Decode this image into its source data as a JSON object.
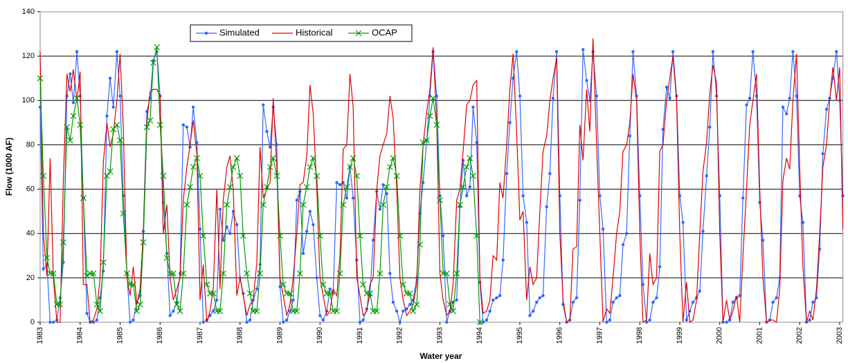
{
  "chart_data": {
    "type": "line",
    "x_label": "Water year",
    "y_label": "Flow (1000 AF)",
    "xlim": [
      1983,
      2003.08
    ],
    "ylim": [
      0,
      140
    ],
    "xticks": [
      1983,
      1984,
      1985,
      1986,
      1987,
      1988,
      1989,
      1990,
      1991,
      1992,
      1993,
      1994,
      1995,
      1996,
      1997,
      1998,
      1999,
      2000,
      2001,
      2002,
      2003
    ],
    "yticks": [
      0,
      20,
      40,
      60,
      80,
      100,
      120,
      140
    ],
    "grid": true,
    "legend_position": "top",
    "x": [
      1983,
      1983.08,
      1983.17,
      1983.25,
      1983.33,
      1983.42,
      1983.5,
      1983.58,
      1983.67,
      1983.75,
      1983.83,
      1983.92,
      1984,
      1984.08,
      1984.17,
      1984.25,
      1984.33,
      1984.42,
      1984.5,
      1984.58,
      1984.67,
      1984.75,
      1984.83,
      1984.92,
      1985,
      1985.08,
      1985.17,
      1985.25,
      1985.33,
      1985.42,
      1985.5,
      1985.58,
      1985.67,
      1985.75,
      1985.83,
      1985.92,
      1986,
      1986.08,
      1986.17,
      1986.25,
      1986.33,
      1986.42,
      1986.5,
      1986.58,
      1986.67,
      1986.75,
      1986.83,
      1986.92,
      1987,
      1987.08,
      1987.17,
      1987.25,
      1987.33,
      1987.42,
      1987.5,
      1987.58,
      1987.67,
      1987.75,
      1987.83,
      1987.92,
      1988,
      1988.08,
      1988.17,
      1988.25,
      1988.33,
      1988.42,
      1988.5,
      1988.58,
      1988.67,
      1988.75,
      1988.83,
      1988.92,
      1989,
      1989.08,
      1989.17,
      1989.25,
      1989.33,
      1989.42,
      1989.5,
      1989.58,
      1989.67,
      1989.75,
      1989.83,
      1989.92,
      1990,
      1990.08,
      1990.17,
      1990.25,
      1990.33,
      1990.42,
      1990.5,
      1990.58,
      1990.67,
      1990.75,
      1990.83,
      1990.92,
      1991,
      1991.08,
      1991.17,
      1991.25,
      1991.33,
      1991.42,
      1991.5,
      1991.58,
      1991.67,
      1991.75,
      1991.83,
      1991.92,
      1992,
      1992.08,
      1992.17,
      1992.25,
      1992.33,
      1992.42,
      1992.5,
      1992.58,
      1992.67,
      1992.75,
      1992.83,
      1992.92,
      1993,
      1993.08,
      1993.17,
      1993.25,
      1993.33,
      1993.42,
      1993.5,
      1993.58,
      1993.67,
      1993.75,
      1993.83,
      1993.92,
      1994,
      1994.08,
      1994.17,
      1994.25,
      1994.33,
      1994.42,
      1994.5,
      1994.58,
      1994.67,
      1994.75,
      1994.83,
      1994.92,
      1995,
      1995.08,
      1995.17,
      1995.25,
      1995.33,
      1995.42,
      1995.5,
      1995.58,
      1995.67,
      1995.75,
      1995.83,
      1995.92,
      1996,
      1996.08,
      1996.17,
      1996.25,
      1996.33,
      1996.42,
      1996.5,
      1996.58,
      1996.67,
      1996.75,
      1996.83,
      1996.92,
      1997,
      1997.08,
      1997.17,
      1997.25,
      1997.33,
      1997.42,
      1997.5,
      1997.58,
      1997.67,
      1997.75,
      1997.83,
      1997.92,
      1998,
      1998.08,
      1998.17,
      1998.25,
      1998.33,
      1998.42,
      1998.5,
      1998.58,
      1998.67,
      1998.75,
      1998.83,
      1998.92,
      1999,
      1999.08,
      1999.17,
      1999.25,
      1999.33,
      1999.42,
      1999.5,
      1999.58,
      1999.67,
      1999.75,
      1999.83,
      1999.92,
      2000,
      2000.08,
      2000.17,
      2000.25,
      2000.33,
      2000.42,
      2000.5,
      2000.58,
      2000.67,
      2000.75,
      2000.83,
      2000.92,
      2001,
      2001.08,
      2001.17,
      2001.25,
      2001.33,
      2001.42,
      2001.5,
      2001.58,
      2001.67,
      2001.75,
      2001.83,
      2001.92,
      2002,
      2002.08,
      2002.17,
      2002.25,
      2002.33,
      2002.42,
      2002.5,
      2002.58,
      2002.67,
      2002.75,
      2002.83,
      2002.92,
      2003,
      2003.08
    ],
    "series": [
      {
        "name": "Simulated",
        "color": "#3366ff",
        "marker": "circle",
        "values": [
          97,
          24,
          26,
          0,
          0,
          1,
          11,
          27,
          102,
          112,
          99,
          122,
          102,
          56,
          4,
          0,
          0,
          1,
          11,
          23,
          93,
          110,
          97,
          122,
          102,
          57,
          22,
          0,
          1,
          9,
          12,
          41,
          95,
          101,
          118,
          122,
          102,
          54,
          31,
          3,
          5,
          9,
          22,
          89,
          88,
          79,
          97,
          81,
          42,
          0,
          1,
          3,
          5,
          10,
          51,
          37,
          43,
          40,
          50,
          44,
          20,
          13,
          0,
          1,
          10,
          15,
          26,
          98,
          86,
          79,
          97,
          80,
          16,
          0,
          1,
          5,
          10,
          55,
          59,
          31,
          41,
          50,
          44,
          20,
          3,
          1,
          5,
          15,
          13,
          63,
          62,
          63,
          56,
          70,
          56,
          28,
          0,
          1,
          6,
          12,
          37,
          59,
          51,
          62,
          58,
          22,
          9,
          5,
          0,
          5,
          6,
          8,
          10,
          20,
          49,
          63,
          82,
          102,
          122,
          102,
          57,
          39,
          0,
          5,
          9,
          10,
          52,
          73,
          57,
          61,
          97,
          81,
          18,
          0,
          1,
          5,
          10,
          11,
          12,
          28,
          67,
          90,
          110,
          122,
          102,
          57,
          45,
          3,
          5,
          9,
          11,
          12,
          52,
          67,
          101,
          122,
          57,
          8,
          0,
          1,
          9,
          11,
          55,
          123,
          109,
          100,
          122,
          102,
          57,
          42,
          0,
          1,
          9,
          11,
          12,
          35,
          40,
          84,
          122,
          102,
          57,
          17,
          0,
          1,
          9,
          11,
          25,
          87,
          106,
          101,
          122,
          102,
          57,
          45,
          1,
          5,
          9,
          11,
          14,
          41,
          66,
          88,
          122,
          102,
          57,
          0,
          0,
          1,
          9,
          11,
          12,
          56,
          98,
          101,
          122,
          102,
          54,
          37,
          0,
          1,
          9,
          11,
          20,
          97,
          94,
          101,
          122,
          102,
          57,
          45,
          0,
          1,
          9,
          11,
          33,
          76,
          96,
          101,
          110,
          122,
          100,
          57
        ]
      },
      {
        "name": "Historical",
        "color": "#dd0000",
        "marker": "none",
        "values": [
          122,
          40,
          21,
          74,
          20,
          0,
          0,
          64,
          112,
          104,
          114,
          100,
          113,
          17,
          17,
          0,
          1,
          6,
          20,
          72,
          90,
          79,
          85,
          100,
          121,
          88,
          20,
          12,
          25,
          8,
          15,
          40,
          90,
          104,
          105,
          105,
          102,
          40,
          53,
          20,
          10,
          15,
          20,
          55,
          70,
          80,
          91,
          76,
          10,
          26,
          0,
          5,
          15,
          60,
          15,
          55,
          70,
          75,
          60,
          12,
          20,
          12,
          3,
          8,
          10,
          27,
          79,
          56,
          60,
          63,
          101,
          70,
          20,
          12,
          3,
          8,
          20,
          40,
          62,
          63,
          75,
          107,
          94,
          60,
          20,
          12,
          3,
          5,
          15,
          12,
          30,
          78,
          80,
          112,
          97,
          20,
          12,
          3,
          5,
          17,
          20,
          60,
          75,
          80,
          85,
          102,
          92,
          60,
          20,
          10,
          3,
          5,
          8,
          17,
          60,
          80,
          95,
          105,
          124,
          90,
          22,
          10,
          3,
          5,
          17,
          55,
          60,
          77,
          98,
          100,
          107,
          109,
          20,
          4,
          5,
          10,
          30,
          28,
          63,
          56,
          80,
          105,
          121,
          85,
          46,
          50,
          10,
          25,
          17,
          20,
          50,
          77,
          84,
          100,
          110,
          119,
          40,
          10,
          0,
          1,
          33,
          34,
          89,
          73,
          105,
          86,
          128,
          80,
          40,
          0,
          6,
          4,
          20,
          40,
          50,
          77,
          80,
          90,
          112,
          100,
          40,
          0,
          1,
          31,
          17,
          20,
          77,
          80,
          100,
          110,
          120,
          100,
          40,
          0,
          18,
          0,
          1,
          10,
          40,
          68,
          81,
          103,
          116,
          108,
          40,
          0,
          10,
          1,
          5,
          12,
          0,
          30,
          60,
          89,
          100,
          112,
          60,
          20,
          0,
          1,
          1,
          0,
          15,
          64,
          74,
          69,
          100,
          121,
          70,
          25,
          0,
          5,
          1,
          15,
          40,
          70,
          80,
          100,
          115,
          100,
          115,
          42
        ]
      },
      {
        "name": "OCAP",
        "color": "#009900",
        "marker": "x",
        "values": [
          110,
          66,
          29,
          22,
          22,
          8,
          8,
          36,
          88,
          82,
          93,
          101,
          89,
          56,
          21,
          22,
          22,
          8,
          5,
          27,
          66,
          68,
          87,
          89,
          82,
          49,
          22,
          17,
          17,
          5,
          8,
          36,
          88,
          91,
          117,
          124,
          89,
          66,
          29,
          22,
          22,
          8,
          5,
          22,
          53,
          61,
          70,
          74,
          66,
          39,
          17,
          13,
          13,
          5,
          5,
          22,
          53,
          61,
          70,
          74,
          66,
          39,
          22,
          13,
          5,
          5,
          22,
          53,
          61,
          70,
          74,
          66,
          39,
          17,
          13,
          13,
          5,
          5,
          22,
          53,
          61,
          70,
          74,
          66,
          39,
          17,
          13,
          13,
          5,
          5,
          22,
          53,
          61,
          70,
          74,
          66,
          39,
          17,
          13,
          13,
          5,
          5,
          22,
          53,
          61,
          70,
          74,
          66,
          39,
          17,
          13,
          13,
          5,
          8,
          35,
          81,
          82,
          93,
          101,
          89,
          55,
          22,
          22,
          8,
          5,
          22,
          53,
          61,
          70,
          74,
          66,
          39,
          0,
          null,
          null,
          null,
          null,
          null,
          null,
          null,
          null,
          null,
          null,
          null,
          null,
          null,
          null,
          null,
          null,
          null,
          null,
          null,
          null,
          null,
          null,
          null,
          null,
          null,
          null,
          null,
          null,
          null,
          null,
          null,
          null,
          null,
          null,
          null,
          null,
          null,
          null,
          null,
          null,
          null,
          null,
          null,
          null,
          null,
          null,
          null,
          null,
          null,
          null,
          null,
          null,
          null,
          null,
          null,
          null,
          null,
          null,
          null,
          null,
          null,
          null,
          null,
          null,
          null,
          null,
          null,
          null,
          null,
          null,
          null,
          null,
          null,
          null,
          null,
          null,
          null,
          null,
          null,
          null,
          null,
          null,
          null,
          null,
          null,
          null,
          null,
          null,
          null,
          null,
          null,
          null,
          null,
          null,
          null,
          null,
          null,
          null,
          null,
          null,
          null,
          null,
          null,
          null,
          null,
          null,
          null,
          null,
          null
        ]
      }
    ]
  }
}
